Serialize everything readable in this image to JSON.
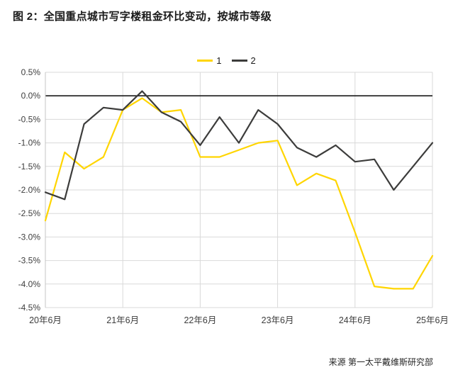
{
  "title": "图 2：全国重点城市写字楼租金环比变动，按城市等级",
  "source": "来源 第一太平戴维斯研究部",
  "colors": {
    "series1": "#ffd500",
    "series2": "#3c3c3b",
    "grid": "#d9d9d9",
    "zero_line": "#1a1a1a",
    "axis": "#c4c4c4"
  },
  "chart_data": {
    "type": "line",
    "title": "图 2：全国重点城市写字楼租金环比变动，按城市等级",
    "xlabel": "",
    "ylabel": "",
    "ylim": [
      -4.5,
      0.5
    ],
    "grid": true,
    "legend_position": "top-center",
    "y_ticks": [
      {
        "value": 0.5,
        "label": "0.5%"
      },
      {
        "value": 0.0,
        "label": "0.0%"
      },
      {
        "value": -0.5,
        "label": "-0.5%"
      },
      {
        "value": -1.0,
        "label": "-1.0%"
      },
      {
        "value": -1.5,
        "label": "-1.5%"
      },
      {
        "value": -2.0,
        "label": "-2.0%"
      },
      {
        "value": -2.5,
        "label": "-2.5%"
      },
      {
        "value": -3.0,
        "label": "-3.0%"
      },
      {
        "value": -3.5,
        "label": "-3.5%"
      },
      {
        "value": -4.0,
        "label": "-4.0%"
      },
      {
        "value": -4.5,
        "label": "-4.5%"
      }
    ],
    "x_ticks": [
      {
        "index": 0,
        "label": "20年6月"
      },
      {
        "index": 4,
        "label": "21年6月"
      },
      {
        "index": 8,
        "label": "22年6月"
      },
      {
        "index": 12,
        "label": "23年6月"
      },
      {
        "index": 16,
        "label": "24年6月"
      },
      {
        "index": 20,
        "label": "25年6月"
      }
    ],
    "x_unit": "quarter",
    "series": [
      {
        "name": "1",
        "color": "#ffd500",
        "values": [
          -2.65,
          -1.2,
          -1.55,
          -1.3,
          -0.3,
          -0.05,
          -0.35,
          -0.3,
          -1.3,
          -1.3,
          -1.15,
          -1.0,
          -0.95,
          -1.9,
          -1.65,
          -1.8,
          -2.9,
          -4.05,
          -4.1,
          -4.1,
          -3.4
        ]
      },
      {
        "name": "2",
        "color": "#3c3c3b",
        "values": [
          -2.05,
          -2.2,
          -0.6,
          -0.25,
          -0.3,
          0.1,
          -0.35,
          -0.55,
          -1.05,
          -0.45,
          -1.0,
          -0.3,
          -0.6,
          -1.1,
          -1.3,
          -1.05,
          -1.4,
          -1.35,
          -2.0,
          -1.5,
          -1.0
        ]
      }
    ]
  }
}
